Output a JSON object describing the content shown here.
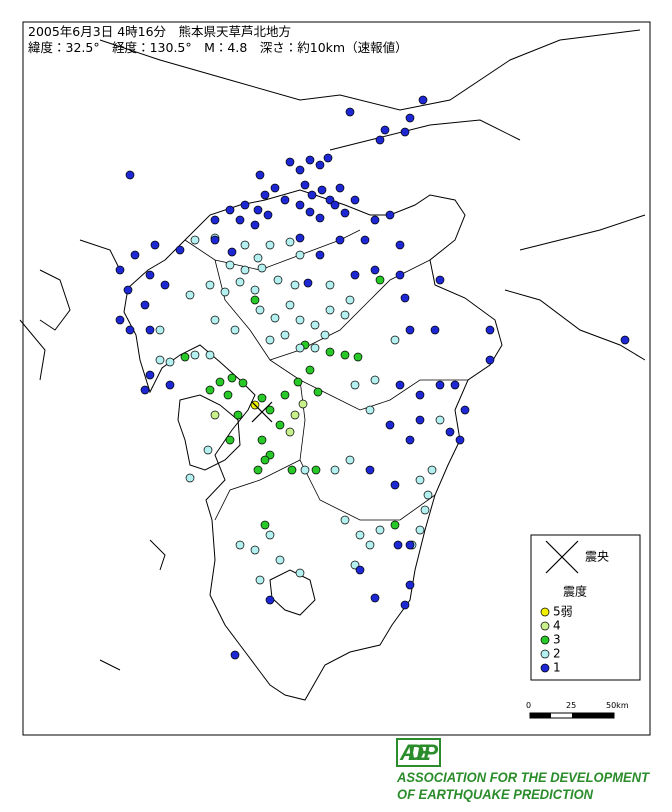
{
  "header": {
    "line1": "2005年6月3日 4時16分　熊本県天草芦北地方",
    "line2": "緯度：32.5°　経度：130.5°　M：4.8　深さ：約10km（速報値）"
  },
  "legend": {
    "epicenter": "震央",
    "intensity_title": "震度",
    "items": [
      {
        "label": "5弱",
        "color": "#f0f000"
      },
      {
        "label": "4",
        "color": "#c8f08c"
      },
      {
        "label": "3",
        "color": "#28c828"
      },
      {
        "label": "2",
        "color": "#b4f0f0"
      },
      {
        "label": "1",
        "color": "#1e28d2"
      }
    ]
  },
  "scale": {
    "labels": [
      "0",
      "25",
      "50km"
    ]
  },
  "logo": {
    "mark": "ADEP",
    "line1": "ASSOCIATION FOR THE DEVELOPMENT",
    "line2": "OF EARTHQUAKE PREDICTION"
  }
}
